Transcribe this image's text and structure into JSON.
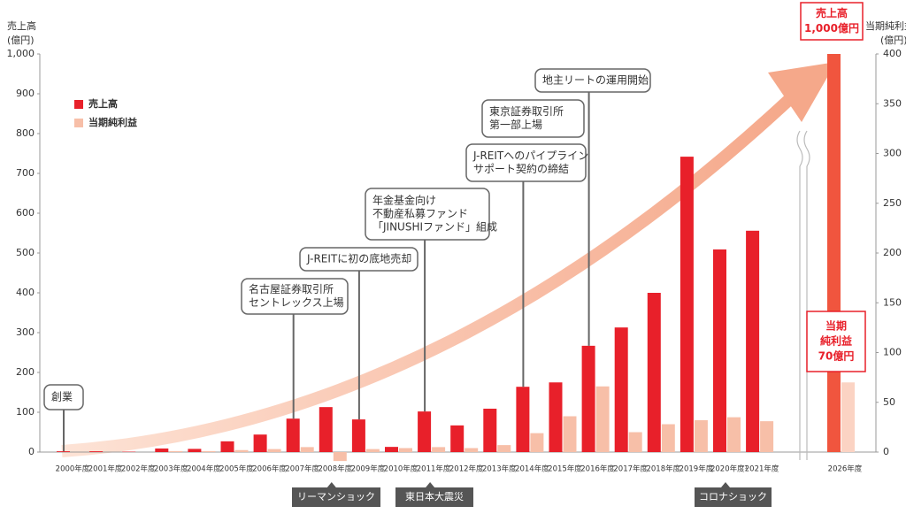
{
  "chart_data": {
    "type": "bar",
    "y_label": [
      "売上高",
      "(億円)"
    ],
    "y2_label": [
      "当期純利益",
      "(億円)"
    ],
    "categories": [
      "2000年度",
      "2001年度",
      "2002年度",
      "2003年度",
      "2004年度",
      "2005年度",
      "2006年度",
      "2007年度",
      "2008年度",
      "2009年度",
      "2010年度",
      "2011年度",
      "2012年度",
      "2013年度",
      "2014年度",
      "2015年度",
      "2016年度",
      "2017年度",
      "2018年度",
      "2019年度",
      "2020年度¹",
      "2021年度",
      "2026年度"
    ],
    "series": [
      {
        "name": "売上高",
        "color": "#e8202a",
        "last_color": "#f0553e",
        "values": [
          2,
          2,
          1,
          9,
          8,
          27,
          44,
          84,
          113,
          82,
          13,
          102,
          67,
          109,
          164,
          175,
          267,
          313,
          400,
          742,
          509,
          556,
          1000
        ]
      },
      {
        "name": "当期純利益",
        "color": "#f7bfa8",
        "last_color": "#fbd3c3",
        "axis": "y2",
        "values": [
          0,
          0,
          0,
          1,
          1,
          2,
          3,
          5,
          -9,
          3,
          4,
          5,
          4,
          7,
          19,
          36,
          66,
          20,
          28,
          32,
          35,
          31,
          70
        ]
      }
    ],
    "ylim": [
      0,
      1000
    ],
    "yticks": [
      0,
      100,
      200,
      300,
      400,
      500,
      600,
      700,
      800,
      900,
      {
        "value": 1000,
        "label": "1,000"
      }
    ],
    "y2lim": [
      0,
      400
    ],
    "y2ticks": [
      0,
      50,
      100,
      150,
      200,
      250,
      300,
      350,
      400
    ],
    "annotations": [
      {
        "lines": [
          "創業"
        ]
      },
      {
        "lines": [
          "名古屋証券取引所",
          "セントレックス上場"
        ]
      },
      {
        "lines": [
          "J-REITに初の底地売却"
        ]
      },
      {
        "lines": [
          "年金基金向け",
          "不動産私募ファンド",
          "「JINUSHIファンド」組成"
        ]
      },
      {
        "lines": [
          "J-REITへのパイプライン",
          "サポート契約の締結"
        ]
      },
      {
        "lines": [
          "東京証券取引所",
          "第一部上場"
        ]
      },
      {
        "lines": [
          "地主リートの運用開始"
        ]
      }
    ],
    "events": [
      "リーマンショック",
      "東日本大震災",
      "コロナショック"
    ],
    "callouts": [
      {
        "lines": [
          "売上高",
          "1,000億円"
        ]
      },
      {
        "lines": [
          "当期",
          "純利益",
          "70億円"
        ]
      }
    ]
  }
}
